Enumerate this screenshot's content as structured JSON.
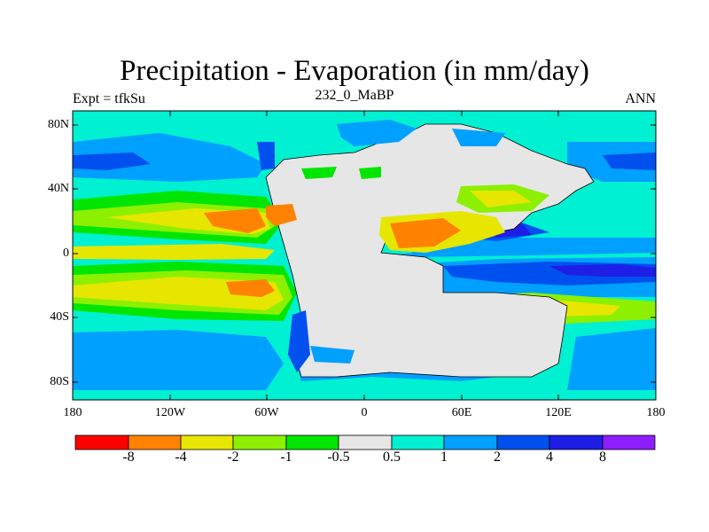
{
  "title": "Precipitation - Evaporation (in mm/day)",
  "subtitle_left": "Expt = tfkSu",
  "subtitle_center": "232_0_MaBP",
  "subtitle_right": "ANN",
  "y_ticks": [
    "80N",
    "40N",
    "0",
    "40S",
    "80S"
  ],
  "x_ticks": [
    "180",
    "120W",
    "60W",
    "0",
    "60E",
    "120E",
    "180"
  ],
  "colorbar": {
    "labels": [
      "-8",
      "-4",
      "-2",
      "-1",
      "-0.5",
      "0.5",
      "1",
      "2",
      "4",
      "8"
    ],
    "colors": [
      "#ff0000",
      "#ff8200",
      "#e6e600",
      "#8cf000",
      "#00e600",
      "#e6e6e6",
      "#00f0d2",
      "#00a0ff",
      "#0050f0",
      "#1e1ee6",
      "#8c1eff"
    ]
  }
}
